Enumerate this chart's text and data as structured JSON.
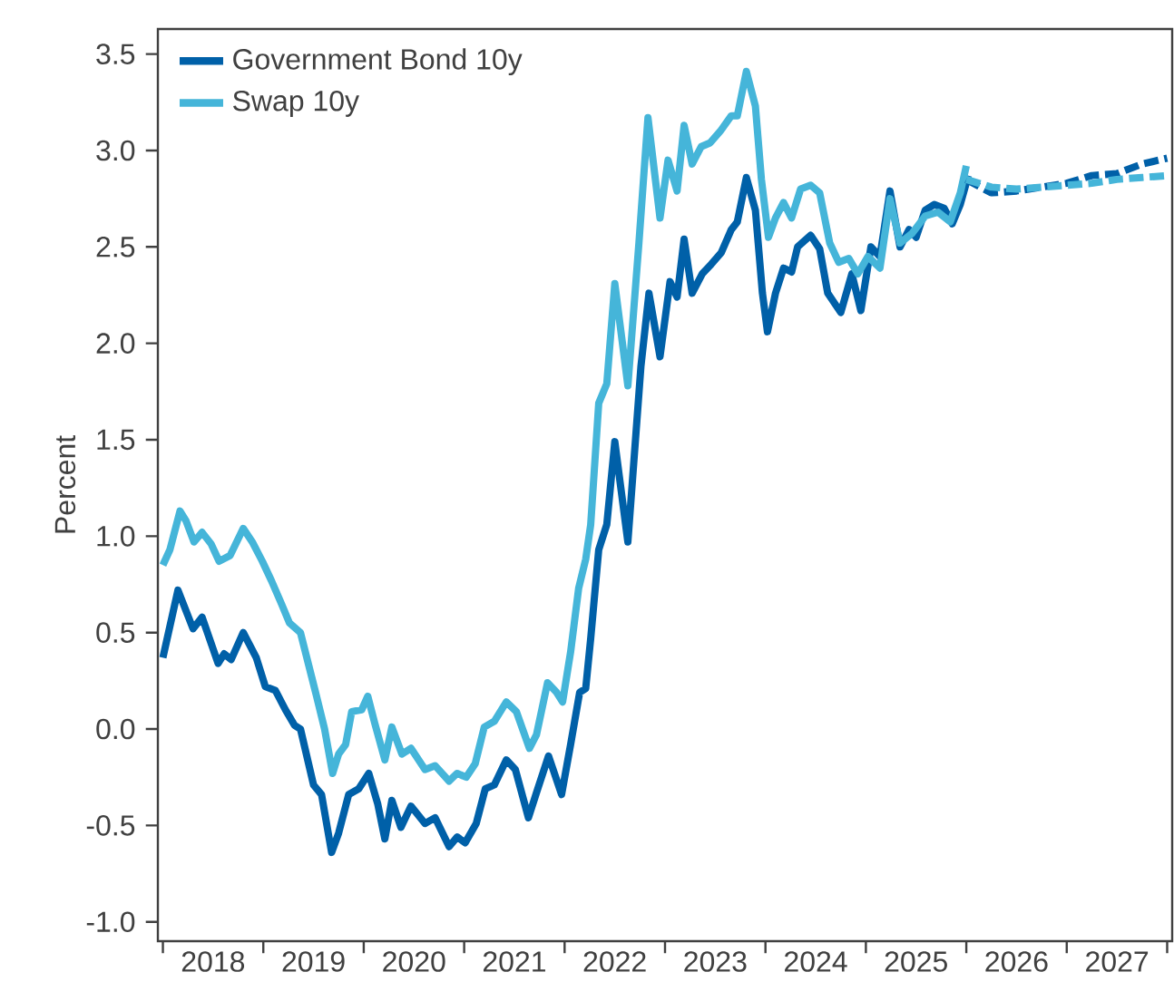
{
  "chart_data": {
    "type": "line",
    "ylabel": "Percent",
    "xlim": [
      2017.95,
      2028.05
    ],
    "ylim": [
      -1.1,
      3.63
    ],
    "xticks": [
      {
        "value": 2018,
        "label": null
      },
      {
        "value": 2019,
        "label": null
      },
      {
        "value": 2020,
        "label": null
      },
      {
        "value": 2021,
        "label": null
      },
      {
        "value": 2022,
        "label": null
      },
      {
        "value": 2023,
        "label": null
      },
      {
        "value": 2024,
        "label": null
      },
      {
        "value": 2025,
        "label": null
      },
      {
        "value": 2026,
        "label": null
      },
      {
        "value": 2027,
        "label": null
      },
      {
        "value": 2028,
        "label": null
      },
      {
        "value": 2018.5,
        "label": "2018"
      },
      {
        "value": 2019.5,
        "label": "2019"
      },
      {
        "value": 2020.5,
        "label": "2020"
      },
      {
        "value": 2021.5,
        "label": "2021"
      },
      {
        "value": 2022.5,
        "label": "2022"
      },
      {
        "value": 2023.5,
        "label": "2023"
      },
      {
        "value": 2024.5,
        "label": "2024"
      },
      {
        "value": 2025.5,
        "label": "2025"
      },
      {
        "value": 2026.5,
        "label": "2026"
      },
      {
        "value": 2027.5,
        "label": "2027"
      }
    ],
    "yticks": [
      {
        "value": -1,
        "label": "-1.0"
      },
      {
        "value": -0.5,
        "label": "-0.5"
      },
      {
        "value": 0,
        "label": "0.0"
      },
      {
        "value": 0.5,
        "label": "0.5"
      },
      {
        "value": 1,
        "label": "1.0"
      },
      {
        "value": 1.5,
        "label": "1.5"
      },
      {
        "value": 2,
        "label": "2.0"
      },
      {
        "value": 2.5,
        "label": "2.5"
      },
      {
        "value": 3,
        "label": "3.0"
      },
      {
        "value": 3.5,
        "label": "3.5"
      }
    ],
    "legend": "top left",
    "grid": false,
    "series": [
      {
        "name": "Government Bond 10y",
        "color": "#0060a8",
        "line_style": "solid",
        "x": [
          2018.0,
          2018.15,
          2018.3,
          2018.39,
          2018.55,
          2018.61,
          2018.68,
          2018.8,
          2018.93,
          2019.02,
          2019.12,
          2019.22,
          2019.31,
          2019.37,
          2019.5,
          2019.58,
          2019.68,
          2019.75,
          2019.85,
          2019.95,
          2020.05,
          2020.14,
          2020.21,
          2020.28,
          2020.37,
          2020.47,
          2020.61,
          2020.71,
          2020.85,
          2020.93,
          2021.01,
          2021.12,
          2021.21,
          2021.3,
          2021.42,
          2021.51,
          2021.64,
          2021.72,
          2021.84,
          2021.97,
          2022.06,
          2022.15,
          2022.21,
          2022.26,
          2022.34,
          2022.42,
          2022.5,
          2022.63,
          2022.76,
          2022.84,
          2022.95,
          2023.05,
          2023.12,
          2023.19,
          2023.27,
          2023.37,
          2023.46,
          2023.56,
          2023.66,
          2023.72,
          2023.81,
          2023.9,
          2023.97,
          2024.02,
          2024.1,
          2024.18,
          2024.26,
          2024.32,
          2024.45,
          2024.54,
          2024.62,
          2024.75,
          2024.86,
          2024.95,
          2025.05,
          2025.14,
          2025.24,
          2025.34,
          2025.43,
          2025.5,
          2025.59,
          2025.68,
          2025.78,
          2025.86,
          2025.94,
          2026.02
        ],
        "values": [
          0.37,
          0.72,
          0.52,
          0.58,
          0.34,
          0.39,
          0.36,
          0.5,
          0.37,
          0.22,
          0.2,
          0.1,
          0.02,
          0.0,
          -0.29,
          -0.34,
          -0.64,
          -0.54,
          -0.34,
          -0.31,
          -0.23,
          -0.39,
          -0.57,
          -0.37,
          -0.51,
          -0.4,
          -0.49,
          -0.46,
          -0.61,
          -0.56,
          -0.59,
          -0.49,
          -0.31,
          -0.29,
          -0.16,
          -0.21,
          -0.46,
          -0.33,
          -0.14,
          -0.34,
          -0.08,
          0.19,
          0.21,
          0.47,
          0.93,
          1.06,
          1.49,
          0.97,
          1.88,
          2.26,
          1.93,
          2.32,
          2.24,
          2.54,
          2.26,
          2.36,
          2.41,
          2.47,
          2.59,
          2.63,
          2.86,
          2.69,
          2.26,
          2.06,
          2.26,
          2.39,
          2.37,
          2.5,
          2.56,
          2.49,
          2.26,
          2.16,
          2.36,
          2.17,
          2.5,
          2.45,
          2.79,
          2.5,
          2.59,
          2.55,
          2.69,
          2.72,
          2.7,
          2.62,
          2.72,
          2.87
        ]
      },
      {
        "name": "Swap 10y",
        "color": "#45b5d9",
        "line_style": "solid",
        "x": [
          2018.0,
          2018.07,
          2018.17,
          2018.23,
          2018.31,
          2018.39,
          2018.48,
          2018.56,
          2018.67,
          2018.8,
          2018.89,
          2018.99,
          2019.08,
          2019.18,
          2019.26,
          2019.37,
          2019.53,
          2019.61,
          2019.69,
          2019.75,
          2019.82,
          2019.88,
          2019.98,
          2020.04,
          2020.11,
          2020.21,
          2020.28,
          2020.38,
          2020.47,
          2020.61,
          2020.71,
          2020.85,
          2020.93,
          2021.02,
          2021.11,
          2021.2,
          2021.3,
          2021.42,
          2021.52,
          2021.65,
          2021.72,
          2021.83,
          2021.92,
          2021.98,
          2022.06,
          2022.14,
          2022.21,
          2022.26,
          2022.34,
          2022.42,
          2022.5,
          2022.63,
          2022.74,
          2022.83,
          2022.95,
          2023.03,
          2023.12,
          2023.19,
          2023.27,
          2023.36,
          2023.45,
          2023.55,
          2023.66,
          2023.72,
          2023.81,
          2023.9,
          2023.96,
          2024.03,
          2024.1,
          2024.18,
          2024.26,
          2024.35,
          2024.45,
          2024.54,
          2024.64,
          2024.73,
          2024.83,
          2024.92,
          2025.02,
          2025.14,
          2025.24,
          2025.34,
          2025.46,
          2025.59,
          2025.72,
          2025.84,
          2025.94,
          2026.0
        ],
        "values": [
          0.85,
          0.93,
          1.13,
          1.08,
          0.97,
          1.02,
          0.96,
          0.87,
          0.9,
          1.04,
          0.97,
          0.87,
          0.77,
          0.65,
          0.55,
          0.5,
          0.17,
          0.0,
          -0.23,
          -0.13,
          -0.08,
          0.09,
          0.1,
          0.17,
          0.03,
          -0.16,
          0.01,
          -0.13,
          -0.1,
          -0.21,
          -0.19,
          -0.27,
          -0.23,
          -0.25,
          -0.18,
          0.01,
          0.04,
          0.14,
          0.09,
          -0.1,
          -0.03,
          0.24,
          0.19,
          0.14,
          0.4,
          0.73,
          0.88,
          1.06,
          1.69,
          1.79,
          2.31,
          1.78,
          2.52,
          3.17,
          2.65,
          2.95,
          2.79,
          3.13,
          2.93,
          3.02,
          3.04,
          3.1,
          3.18,
          3.18,
          3.41,
          3.23,
          2.85,
          2.55,
          2.65,
          2.73,
          2.65,
          2.8,
          2.82,
          2.78,
          2.52,
          2.42,
          2.44,
          2.36,
          2.45,
          2.39,
          2.75,
          2.52,
          2.57,
          2.66,
          2.68,
          2.63,
          2.78,
          2.92
        ]
      },
      {
        "color": "#0060a8",
        "line_style": "dashed",
        "x": [
          2026.0,
          2026.25,
          2026.5,
          2026.75,
          2027.0,
          2027.25,
          2027.5,
          2027.75,
          2028.0
        ],
        "values": [
          2.85,
          2.78,
          2.79,
          2.81,
          2.83,
          2.87,
          2.88,
          2.93,
          2.96
        ]
      },
      {
        "color": "#45b5d9",
        "line_style": "dashed",
        "x": [
          2026.0,
          2026.25,
          2026.5,
          2026.75,
          2027.0,
          2027.25,
          2027.5,
          2027.75,
          2028.0
        ],
        "values": [
          2.85,
          2.81,
          2.8,
          2.81,
          2.82,
          2.83,
          2.85,
          2.86,
          2.87
        ]
      }
    ]
  }
}
